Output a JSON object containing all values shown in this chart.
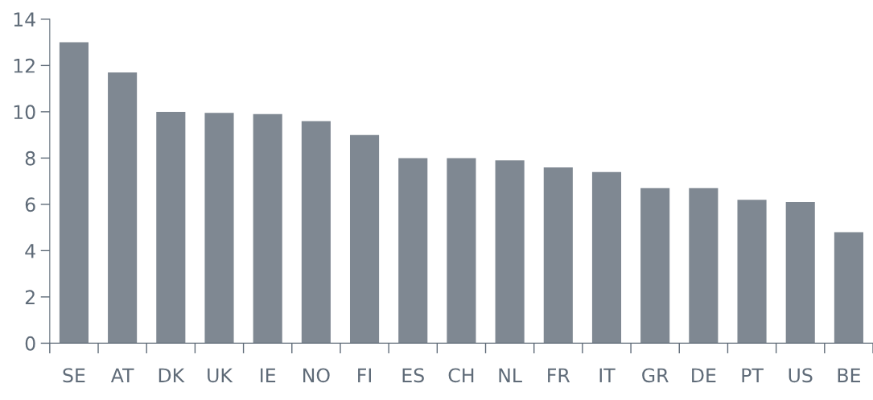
{
  "chart_data": {
    "type": "bar",
    "categories": [
      "SE",
      "AT",
      "DK",
      "UK",
      "IE",
      "NO",
      "FI",
      "ES",
      "CH",
      "NL",
      "FR",
      "IT",
      "GR",
      "DE",
      "PT",
      "US",
      "BE"
    ],
    "values": [
      13.0,
      11.7,
      10.0,
      9.95,
      9.9,
      9.6,
      9.0,
      8.0,
      8.0,
      7.9,
      7.6,
      7.4,
      6.7,
      6.7,
      6.2,
      6.1,
      4.8
    ],
    "color": "#7f8892",
    "ylim": [
      0,
      14
    ],
    "yticks": [
      0,
      2,
      4,
      6,
      8,
      10,
      12,
      14
    ],
    "grid": false
  }
}
